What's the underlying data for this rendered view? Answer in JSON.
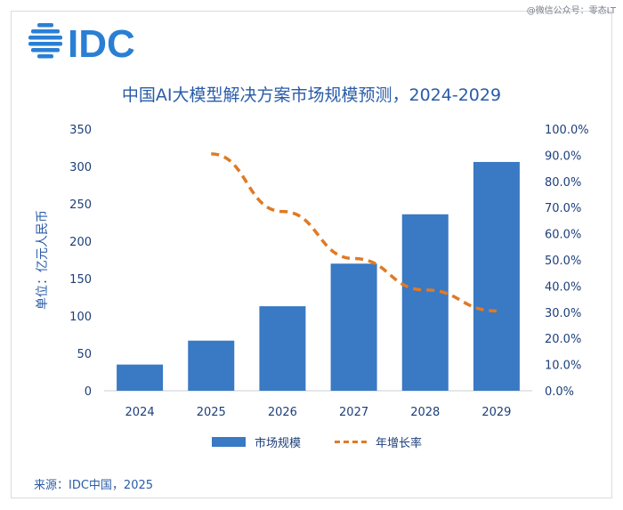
{
  "watermark": "@微信公众号：零态LT",
  "logo": {
    "text": "IDC",
    "color": "#2a7fd4"
  },
  "chart_data": {
    "type": "bar",
    "title": "中国AI大模型解决方案市场规模预测，2024-2029",
    "categories": [
      "2024",
      "2025",
      "2026",
      "2027",
      "2028",
      "2029"
    ],
    "series": [
      {
        "name": "市场规模",
        "type": "bar",
        "axis": "left",
        "color": "#3a79c3",
        "values": [
          35,
          67,
          113,
          170,
          236,
          306
        ]
      },
      {
        "name": "年增长率",
        "type": "line",
        "axis": "right",
        "color": "#e07a25",
        "values": [
          null,
          90.5,
          68.5,
          50.5,
          38.5,
          30.5
        ]
      }
    ],
    "ylabel": "单位：亿元人民币",
    "ylim": [
      0,
      350
    ],
    "yticks": [
      "0",
      "50",
      "100",
      "150",
      "200",
      "250",
      "300",
      "350"
    ],
    "y2lim": [
      0,
      100
    ],
    "y2ticks": [
      "0.0%",
      "10.0%",
      "20.0%",
      "30.0%",
      "40.0%",
      "50.0%",
      "60.0%",
      "70.0%",
      "80.0%",
      "90.0%",
      "100.0%"
    ],
    "legend": [
      "市场规模",
      "年增长率"
    ],
    "grid": false
  },
  "source": "来源：IDC中国，2025"
}
